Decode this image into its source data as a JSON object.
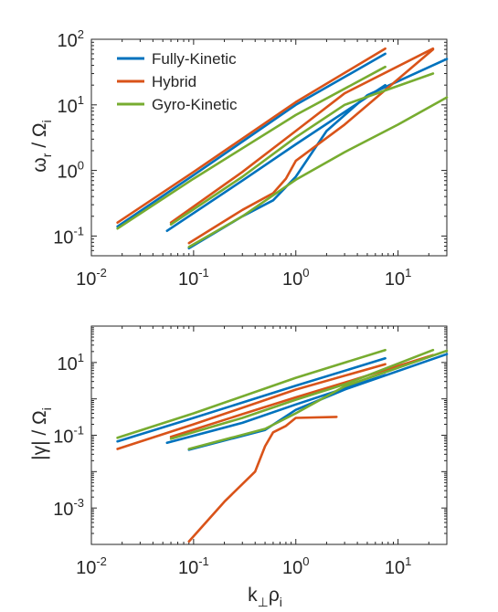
{
  "colors": {
    "fully_kinetic": "#0072BD",
    "hybrid": "#D95319",
    "gyro_kinetic": "#77AC30"
  },
  "chart_data": [
    {
      "type": "line",
      "panel": "top",
      "xscale": "log",
      "yscale": "log",
      "xlim": [
        0.01,
        30
      ],
      "ylim": [
        0.05,
        100
      ],
      "xticks": [
        {
          "base": "10",
          "exp": "-2",
          "value": 0.01
        },
        {
          "base": "10",
          "exp": "-1",
          "value": 0.1
        },
        {
          "base": "10",
          "exp": "0",
          "value": 1
        },
        {
          "base": "10",
          "exp": "1",
          "value": 10
        }
      ],
      "yticks": [
        {
          "base": "10",
          "exp": "-1",
          "value": 0.1
        },
        {
          "base": "10",
          "exp": "0",
          "value": 1
        },
        {
          "base": "10",
          "exp": "1",
          "value": 10
        },
        {
          "base": "10",
          "exp": "2",
          "value": 100
        }
      ],
      "ylabel": {
        "main": "ω",
        "sub": "r",
        "sep": " / ",
        "main2": "Ω",
        "sub2": "i"
      },
      "legend": {
        "position": "top-left",
        "entries": [
          "Fully-Kinetic",
          "Hybrid",
          "Gyro-Kinetic"
        ]
      },
      "series": [
        {
          "name": "Fully-Kinetic",
          "color": "fully_kinetic",
          "points": [
            [
              0.018,
              0.14
            ],
            [
              0.1,
              0.85
            ],
            [
              1,
              10
            ],
            [
              7.5,
              60
            ]
          ]
        },
        {
          "name": "Fully-Kinetic",
          "color": "fully_kinetic",
          "points": [
            [
              0.055,
              0.12
            ],
            [
              0.3,
              0.7
            ],
            [
              1,
              2.5
            ],
            [
              7.5,
              20
            ]
          ]
        },
        {
          "name": "Fully-Kinetic",
          "color": "fully_kinetic",
          "points": [
            [
              0.09,
              0.065
            ],
            [
              0.3,
              0.2
            ],
            [
              0.6,
              0.35
            ],
            [
              1,
              0.8
            ],
            [
              2,
              4
            ],
            [
              5,
              14
            ],
            [
              30,
              50
            ]
          ]
        },
        {
          "name": "Hybrid",
          "color": "hybrid",
          "points": [
            [
              0.018,
              0.16
            ],
            [
              0.1,
              0.95
            ],
            [
              1,
              11
            ],
            [
              7.5,
              72
            ]
          ]
        },
        {
          "name": "Hybrid",
          "color": "hybrid",
          "points": [
            [
              0.06,
              0.16
            ],
            [
              0.3,
              0.95
            ],
            [
              1,
              4.0
            ],
            [
              3,
              15
            ],
            [
              22,
              72
            ]
          ]
        },
        {
          "name": "Hybrid",
          "color": "hybrid",
          "points": [
            [
              0.09,
              0.078
            ],
            [
              0.3,
              0.25
            ],
            [
              0.6,
              0.45
            ],
            [
              0.8,
              0.75
            ],
            [
              1,
              1.4
            ],
            [
              3,
              5
            ],
            [
              22,
              70
            ]
          ]
        },
        {
          "name": "Gyro-Kinetic",
          "color": "gyro_kinetic",
          "points": [
            [
              0.018,
              0.13
            ],
            [
              0.1,
              0.75
            ],
            [
              1,
              7
            ],
            [
              7.5,
              38
            ]
          ]
        },
        {
          "name": "Gyro-Kinetic",
          "color": "gyro_kinetic",
          "points": [
            [
              0.06,
              0.15
            ],
            [
              0.3,
              0.8
            ],
            [
              1,
              3.2
            ],
            [
              3,
              10
            ],
            [
              22,
              30
            ]
          ]
        },
        {
          "name": "Gyro-Kinetic",
          "color": "gyro_kinetic",
          "points": [
            [
              0.09,
              0.068
            ],
            [
              0.3,
              0.2
            ],
            [
              1,
              0.72
            ],
            [
              3,
              1.9
            ],
            [
              10,
              5
            ],
            [
              30,
              13
            ]
          ]
        }
      ]
    },
    {
      "type": "line",
      "panel": "bottom",
      "xscale": "log",
      "yscale": "log",
      "xlim": [
        0.01,
        30
      ],
      "ylim": [
        0.0001,
        100
      ],
      "xticks": [
        {
          "base": "10",
          "exp": "-2",
          "value": 0.01
        },
        {
          "base": "10",
          "exp": "-1",
          "value": 0.1
        },
        {
          "base": "10",
          "exp": "0",
          "value": 1
        },
        {
          "base": "10",
          "exp": "1",
          "value": 10
        }
      ],
      "yticks": [
        {
          "base": "10",
          "exp": "-3",
          "value": 0.001
        },
        {
          "base": "10",
          "exp": "-1",
          "value": 0.1
        },
        {
          "base": "10",
          "exp": "1",
          "value": 10
        }
      ],
      "ylabel": {
        "main": "|γ|",
        "sep": " / ",
        "main2": "Ω",
        "sub2": "i"
      },
      "xlabel": {
        "main": "k",
        "sub": "⊥",
        "main2": "ρ",
        "sub2": "i"
      },
      "series": [
        {
          "name": "Fully-Kinetic",
          "color": "fully_kinetic",
          "points": [
            [
              0.018,
              0.068
            ],
            [
              0.1,
              0.3
            ],
            [
              1,
              2.3
            ],
            [
              7.5,
              13
            ]
          ]
        },
        {
          "name": "Fully-Kinetic",
          "color": "fully_kinetic",
          "points": [
            [
              0.055,
              0.062
            ],
            [
              0.3,
              0.22
            ],
            [
              1,
              0.7
            ],
            [
              7.5,
              4.5
            ]
          ]
        },
        {
          "name": "Fully-Kinetic",
          "color": "fully_kinetic",
          "points": [
            [
              0.09,
              0.04
            ],
            [
              0.5,
              0.14
            ],
            [
              1,
              0.5
            ],
            [
              3,
              1.8
            ],
            [
              30,
              17
            ]
          ]
        },
        {
          "name": "Hybrid",
          "color": "hybrid",
          "points": [
            [
              0.018,
              0.042
            ],
            [
              0.1,
              0.2
            ],
            [
              1,
              1.8
            ],
            [
              7.5,
              9
            ]
          ]
        },
        {
          "name": "Hybrid",
          "color": "hybrid",
          "points": [
            [
              0.06,
              0.09
            ],
            [
              0.3,
              0.38
            ],
            [
              1,
              1.1
            ],
            [
              3,
              2.8
            ],
            [
              22,
              16
            ]
          ]
        },
        {
          "name": "Hybrid",
          "color": "hybrid",
          "points": [
            [
              0.09,
              0.00012
            ],
            [
              0.2,
              0.0015
            ],
            [
              0.4,
              0.01
            ],
            [
              0.5,
              0.05
            ],
            [
              0.6,
              0.12
            ],
            [
              0.8,
              0.18
            ],
            [
              1,
              0.3
            ],
            [
              2.5,
              0.32
            ]
          ]
        },
        {
          "name": "Gyro-Kinetic",
          "color": "gyro_kinetic",
          "points": [
            [
              0.018,
              0.085
            ],
            [
              0.1,
              0.4
            ],
            [
              1,
              3.8
            ],
            [
              7.5,
              22
            ]
          ]
        },
        {
          "name": "Gyro-Kinetic",
          "color": "gyro_kinetic",
          "points": [
            [
              0.06,
              0.08
            ],
            [
              0.3,
              0.3
            ],
            [
              1,
              0.95
            ],
            [
              3,
              2.5
            ],
            [
              22,
              22
            ]
          ]
        },
        {
          "name": "Gyro-Kinetic",
          "color": "gyro_kinetic",
          "points": [
            [
              0.09,
              0.042
            ],
            [
              0.5,
              0.15
            ],
            [
              1,
              0.4
            ],
            [
              3,
              2.2
            ],
            [
              30,
              21
            ]
          ]
        }
      ]
    }
  ]
}
